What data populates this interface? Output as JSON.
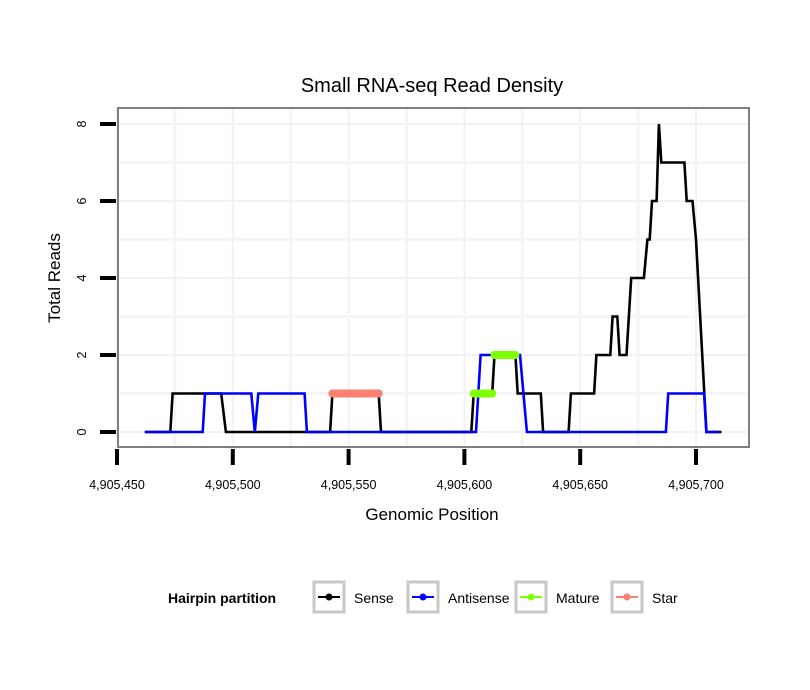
{
  "chart_data": {
    "type": "line",
    "title": "Small RNA-seq Read Density",
    "xlabel": "Genomic Position",
    "ylabel": "Total Reads",
    "xlim": [
      4905448,
      4905719
    ],
    "ylim": [
      -0.4,
      8.4
    ],
    "x_ticks": [
      4905450,
      4905500,
      4905550,
      4905600,
      4905650,
      4905700
    ],
    "x_tick_labels": [
      "4,905,450",
      "4,905,500",
      "4,905,550",
      "4,905,600",
      "4,905,650",
      "4,905,700"
    ],
    "y_ticks": [
      0,
      2,
      4,
      6,
      8
    ],
    "y_tick_labels": [
      "0",
      "2",
      "4",
      "6",
      "8"
    ],
    "x_grid": [
      4905475,
      4905525,
      4905575,
      4905625,
      4905675
    ],
    "y_grid": [
      1,
      3,
      5,
      7
    ],
    "grid": true,
    "legend": {
      "title": "Hairpin partition",
      "placement": "bottom",
      "entries": [
        "Sense",
        "Antisense",
        "Mature",
        "Star"
      ]
    },
    "series": [
      {
        "name": "Sense",
        "color": "#000000",
        "points": [
          [
            4905462,
            0
          ],
          [
            4905473,
            0
          ],
          [
            4905474,
            1
          ],
          [
            4905495,
            1
          ],
          [
            4905497,
            0
          ],
          [
            4905542,
            0
          ],
          [
            4905543,
            1
          ],
          [
            4905563,
            1
          ],
          [
            4905564,
            0
          ],
          [
            4905603,
            0
          ],
          [
            4905604,
            1
          ],
          [
            4905612,
            1
          ],
          [
            4905613,
            2
          ],
          [
            4905622,
            2
          ],
          [
            4905623,
            1
          ],
          [
            4905633,
            1
          ],
          [
            4905634,
            0
          ],
          [
            4905645,
            0
          ],
          [
            4905646,
            1
          ],
          [
            4905656,
            1
          ],
          [
            4905657,
            2
          ],
          [
            4905663,
            2
          ],
          [
            4905664,
            3
          ],
          [
            4905666,
            3
          ],
          [
            4905667,
            2
          ],
          [
            4905670,
            2
          ],
          [
            4905672,
            4
          ],
          [
            4905677.5,
            4
          ],
          [
            4905679,
            5
          ],
          [
            4905680,
            5
          ],
          [
            4905681,
            6
          ],
          [
            4905683,
            6
          ],
          [
            4905684,
            8
          ],
          [
            4905685,
            7
          ],
          [
            4905695,
            7
          ],
          [
            4905696,
            6
          ],
          [
            4905698.5,
            6
          ],
          [
            4905700,
            5
          ],
          [
            4905704.5,
            0
          ],
          [
            4905711,
            0
          ]
        ]
      },
      {
        "name": "Antisense",
        "color": "#0000ff",
        "points": [
          [
            4905462,
            0
          ],
          [
            4905487,
            0
          ],
          [
            4905488,
            1
          ],
          [
            4905508,
            1
          ],
          [
            4905509.5,
            0
          ],
          [
            4905511,
            1
          ],
          [
            4905531,
            1
          ],
          [
            4905532,
            0
          ],
          [
            4905605,
            0
          ],
          [
            4905607,
            2
          ],
          [
            4905624,
            2
          ],
          [
            4905627,
            0
          ],
          [
            4905687,
            0
          ],
          [
            4905688,
            1
          ],
          [
            4905703.5,
            1
          ],
          [
            4905704.5,
            0
          ],
          [
            4905710,
            0
          ]
        ]
      },
      {
        "name": "Mature",
        "color": "#7fff00",
        "segments": [
          [
            [
              4905604,
              1
            ],
            [
              4905612,
              1
            ]
          ],
          [
            [
              4905613,
              2
            ],
            [
              4905622,
              2
            ]
          ]
        ]
      },
      {
        "name": "Star",
        "color": "#fa8072",
        "segments": [
          [
            [
              4905543,
              1
            ],
            [
              4905563,
              1
            ]
          ]
        ]
      }
    ]
  }
}
